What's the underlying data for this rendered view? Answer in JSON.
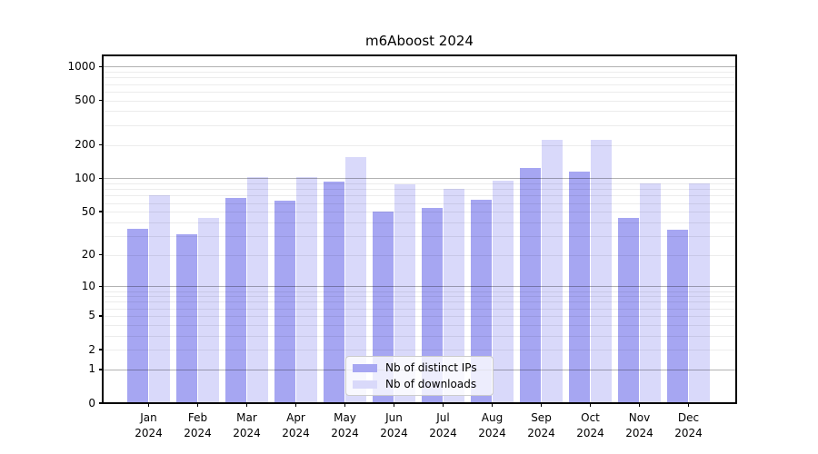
{
  "title": "m6Aboost 2024",
  "background_color": "#ffffff",
  "chart_data": {
    "type": "bar",
    "title": "m6Aboost 2024",
    "categories": [
      "Jan",
      "Feb",
      "Mar",
      "Apr",
      "May",
      "Jun",
      "Jul",
      "Aug",
      "Sep",
      "Oct",
      "Nov",
      "Dec"
    ],
    "x_tick_year": "2024",
    "series": [
      {
        "name": "Nb of distinct IPs",
        "color": "#a6a6f2",
        "values": [
          35,
          31,
          66,
          63,
          93,
          50,
          54,
          64,
          124,
          115,
          44,
          34
        ]
      },
      {
        "name": "Nb of downloads",
        "color": "#d9d9fa",
        "values": [
          70,
          44,
          103,
          103,
          156,
          89,
          80,
          96,
          220,
          220,
          90,
          90
        ]
      }
    ],
    "y_scale": "log10(1+v)",
    "ylim": [
      0,
      1259
    ],
    "y_ticks": [
      0,
      1,
      2,
      5,
      10,
      20,
      50,
      100,
      200,
      500,
      1000
    ],
    "y_major_gridlines": [
      1,
      10,
      100,
      1000
    ],
    "y_minor_gridlines": [
      2,
      3,
      4,
      5,
      6,
      7,
      8,
      9,
      20,
      30,
      40,
      50,
      60,
      70,
      80,
      90,
      200,
      300,
      400,
      500,
      600,
      700,
      800,
      900
    ],
    "grid": "both",
    "legend_position": "lower center",
    "axis_color": "#000000",
    "xlabel": "",
    "ylabel": ""
  },
  "legend": {
    "entries": [
      {
        "label": "Nb of distinct IPs"
      },
      {
        "label": "Nb of downloads"
      }
    ]
  }
}
